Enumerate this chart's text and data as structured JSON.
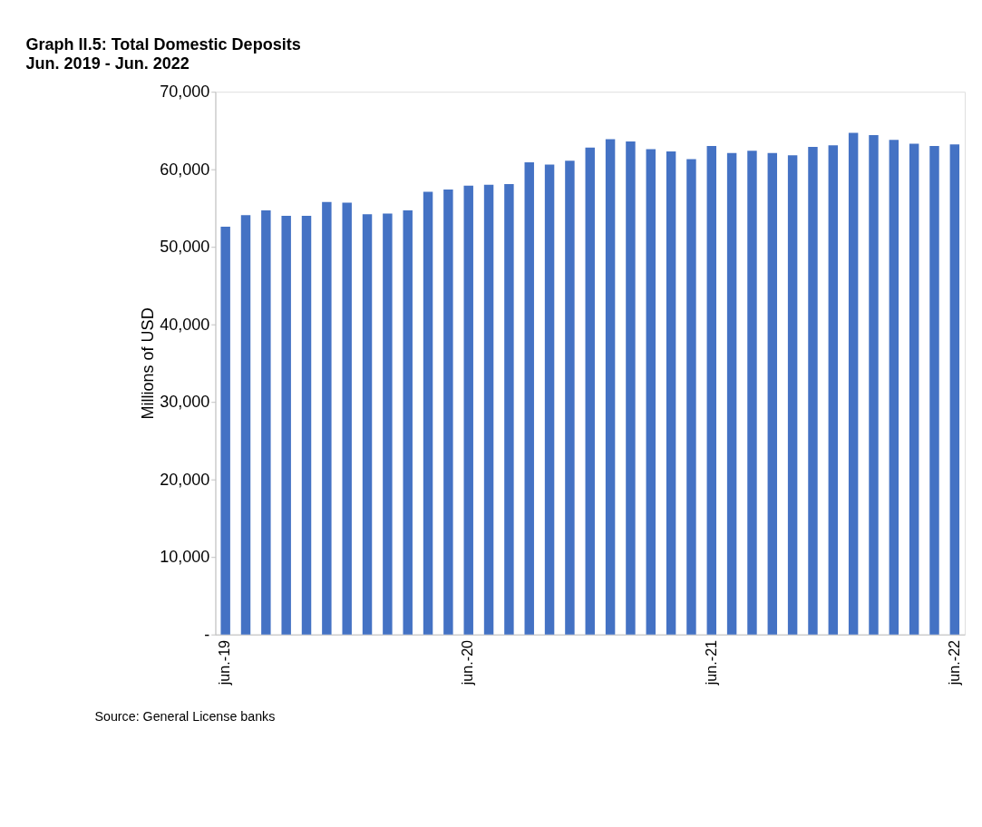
{
  "chart_data": {
    "type": "bar",
    "title": "Graph II.5:  Total Domestic Deposits",
    "subtitle": "Jun. 2019 - Jun. 2022",
    "ylabel": "Millions of  USD",
    "categories": [
      "jun.-19",
      null,
      null,
      null,
      null,
      null,
      null,
      null,
      null,
      null,
      null,
      null,
      "jun.-20",
      null,
      null,
      null,
      null,
      null,
      null,
      null,
      null,
      null,
      null,
      null,
      "jun.-21",
      null,
      null,
      null,
      null,
      null,
      null,
      null,
      null,
      null,
      null,
      null,
      "jun.-22"
    ],
    "values": [
      52600,
      54100,
      54700,
      54000,
      54000,
      55800,
      55700,
      54200,
      54300,
      54700,
      57100,
      57400,
      57900,
      58000,
      58100,
      60900,
      60600,
      61100,
      62800,
      63900,
      63600,
      62600,
      62300,
      61300,
      63000,
      62100,
      62400,
      62100,
      61800,
      62900,
      63100,
      64700,
      64400,
      63800,
      63300,
      63000,
      63200
    ],
    "color": "#4472c4",
    "ylim": [
      0,
      70000
    ],
    "yticks": [
      {
        "value": 0,
        "label": "-"
      },
      {
        "value": 10000,
        "label": "10,000"
      },
      {
        "value": 20000,
        "label": "20,000"
      },
      {
        "value": 30000,
        "label": "30,000"
      },
      {
        "value": 40000,
        "label": "40,000"
      },
      {
        "value": 50000,
        "label": "50,000"
      },
      {
        "value": 60000,
        "label": "60,000"
      },
      {
        "value": 70000,
        "label": "70,000"
      }
    ],
    "grid": false,
    "annotations": [
      "Source: General License banks"
    ]
  }
}
